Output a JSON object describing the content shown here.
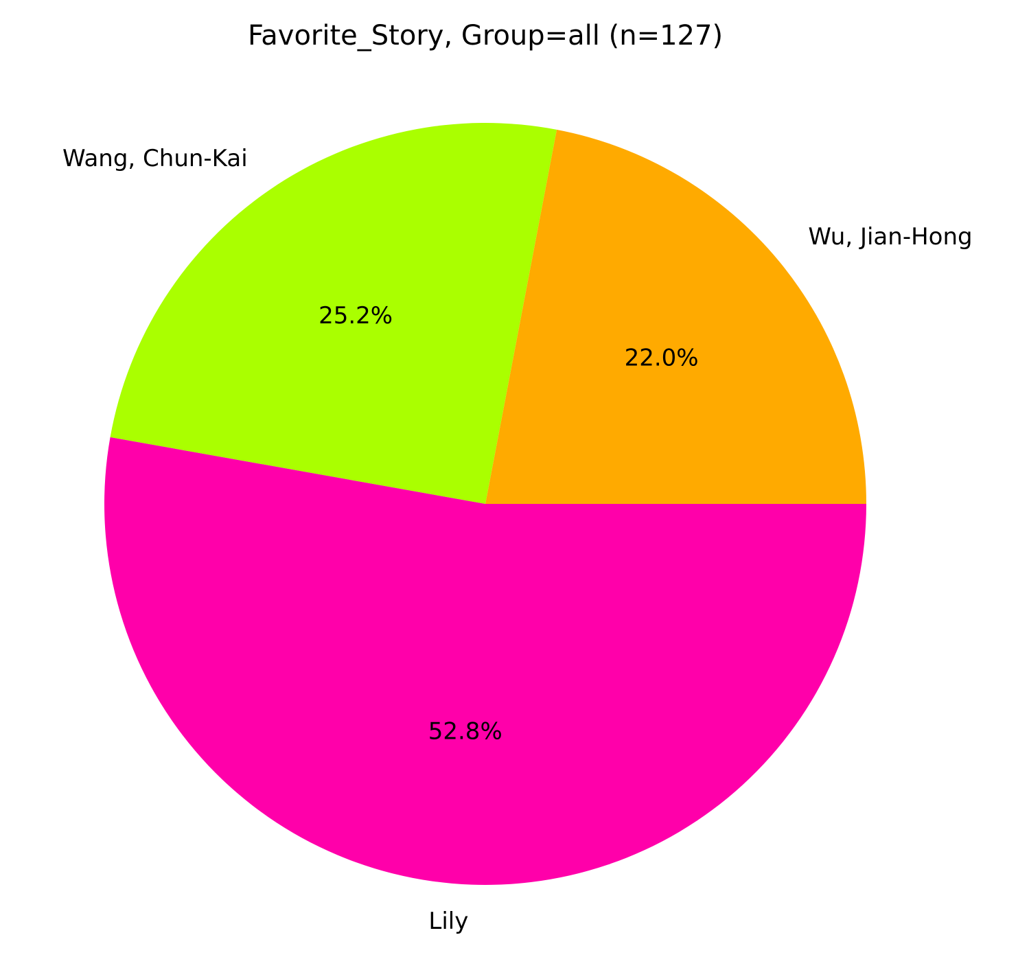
{
  "chart_data": {
    "type": "pie",
    "title": "Favorite_Story, Group=all (n=127)",
    "slices": [
      {
        "label": "Wu, Jian-Hong",
        "value": 22.0,
        "pct_label": "22.0%",
        "color": "#FFAA00"
      },
      {
        "label": "Wang, Chun-Kai",
        "value": 25.2,
        "pct_label": "25.2%",
        "color": "#AAFF00"
      },
      {
        "label": "Lily",
        "value": 52.8,
        "pct_label": "52.8%",
        "color": "#FF00AA"
      }
    ],
    "start_angle_deg": 0,
    "direction": "counterclockwise"
  }
}
